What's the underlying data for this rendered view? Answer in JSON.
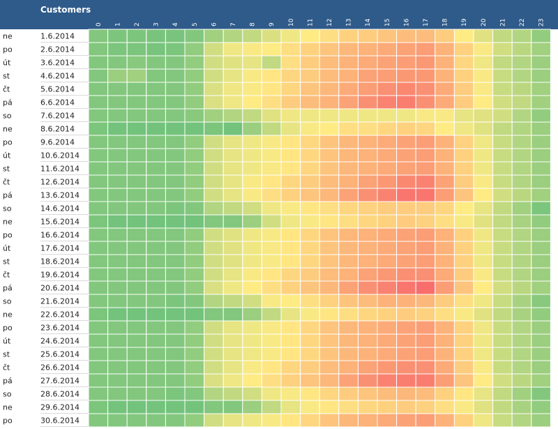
{
  "chart_data": {
    "type": "heatmap",
    "title": "Customers",
    "colors": {
      "header": "#2f5b8a",
      "low": "#63be7b",
      "mid": "#ffeb84",
      "high": "#f8696b"
    },
    "value_range": [
      0,
      100
    ],
    "columns": [
      "0",
      "1",
      "2",
      "3",
      "4",
      "5",
      "6",
      "7",
      "8",
      "9",
      "10",
      "11",
      "12",
      "13",
      "14",
      "15",
      "16",
      "17",
      "18",
      "19",
      "20",
      "21",
      "22",
      "23"
    ],
    "rows": [
      {
        "day": "ne",
        "date": "1.6.2014"
      },
      {
        "day": "po",
        "date": "2.6.2014"
      },
      {
        "day": "út",
        "date": "3.6.2014"
      },
      {
        "day": "st",
        "date": "4.6.2014"
      },
      {
        "day": "čt",
        "date": "5.6.2014"
      },
      {
        "day": "pá",
        "date": "6.6.2014"
      },
      {
        "day": "so",
        "date": "7.6.2014"
      },
      {
        "day": "ne",
        "date": "8.6.2014"
      },
      {
        "day": "po",
        "date": "9.6.2014"
      },
      {
        "day": "út",
        "date": "10.6.2014"
      },
      {
        "day": "st",
        "date": "11.6.2014"
      },
      {
        "day": "čt",
        "date": "12.6.2014"
      },
      {
        "day": "pá",
        "date": "13.6.2014"
      },
      {
        "day": "so",
        "date": "14.6.2014"
      },
      {
        "day": "ne",
        "date": "15.6.2014"
      },
      {
        "day": "po",
        "date": "16.6.2014"
      },
      {
        "day": "út",
        "date": "17.6.2014"
      },
      {
        "day": "st",
        "date": "18.6.2014"
      },
      {
        "day": "čt",
        "date": "19.6.2014"
      },
      {
        "day": "pá",
        "date": "20.6.2014"
      },
      {
        "day": "so",
        "date": "21.6.2014"
      },
      {
        "day": "ne",
        "date": "22.6.2014"
      },
      {
        "day": "po",
        "date": "23.6.2014"
      },
      {
        "day": "út",
        "date": "24.6.2014"
      },
      {
        "day": "st",
        "date": "25.6.2014"
      },
      {
        "day": "čt",
        "date": "26.6.2014"
      },
      {
        "day": "pá",
        "date": "27.6.2014"
      },
      {
        "day": "so",
        "date": "28.6.2014"
      },
      {
        "day": "ne",
        "date": "29.6.2014"
      },
      {
        "day": "po",
        "date": "30.6.2014"
      }
    ],
    "values": [
      [
        10,
        8,
        8,
        7,
        7,
        10,
        20,
        25,
        30,
        38,
        45,
        50,
        55,
        60,
        62,
        65,
        68,
        68,
        62,
        50,
        40,
        30,
        25,
        15
      ],
      [
        10,
        8,
        8,
        7,
        8,
        15,
        35,
        45,
        48,
        50,
        55,
        60,
        65,
        70,
        72,
        75,
        78,
        80,
        72,
        60,
        48,
        35,
        28,
        20
      ],
      [
        10,
        10,
        12,
        10,
        10,
        15,
        35,
        40,
        42,
        30,
        55,
        62,
        68,
        72,
        75,
        78,
        80,
        82,
        72,
        58,
        45,
        30,
        25,
        18
      ],
      [
        10,
        18,
        20,
        10,
        10,
        15,
        35,
        42,
        48,
        52,
        58,
        62,
        68,
        72,
        78,
        80,
        82,
        82,
        72,
        60,
        48,
        32,
        25,
        18
      ],
      [
        10,
        10,
        10,
        10,
        10,
        15,
        38,
        45,
        48,
        52,
        58,
        65,
        70,
        75,
        80,
        85,
        88,
        85,
        75,
        62,
        48,
        32,
        28,
        20
      ],
      [
        10,
        10,
        10,
        10,
        10,
        15,
        38,
        45,
        50,
        55,
        62,
        68,
        72,
        78,
        85,
        90,
        92,
        85,
        75,
        62,
        50,
        35,
        30,
        20
      ],
      [
        10,
        10,
        10,
        10,
        10,
        12,
        20,
        25,
        30,
        40,
        45,
        45,
        45,
        45,
        45,
        45,
        45,
        48,
        48,
        42,
        40,
        35,
        25,
        15
      ],
      [
        8,
        5,
        5,
        5,
        5,
        5,
        8,
        5,
        18,
        30,
        42,
        48,
        50,
        55,
        55,
        58,
        60,
        58,
        50,
        45,
        40,
        30,
        25,
        18
      ],
      [
        10,
        10,
        10,
        10,
        10,
        15,
        35,
        42,
        45,
        48,
        52,
        58,
        65,
        70,
        72,
        75,
        78,
        80,
        72,
        60,
        45,
        32,
        25,
        18
      ],
      [
        10,
        10,
        10,
        10,
        10,
        15,
        35,
        42,
        45,
        48,
        52,
        58,
        65,
        70,
        72,
        75,
        78,
        80,
        72,
        60,
        45,
        32,
        25,
        18
      ],
      [
        10,
        10,
        10,
        10,
        10,
        15,
        35,
        42,
        45,
        48,
        52,
        58,
        65,
        70,
        72,
        75,
        78,
        80,
        72,
        60,
        45,
        32,
        25,
        18
      ],
      [
        10,
        10,
        10,
        10,
        10,
        15,
        35,
        42,
        48,
        52,
        58,
        62,
        68,
        72,
        78,
        82,
        88,
        90,
        78,
        62,
        48,
        32,
        25,
        18
      ],
      [
        10,
        10,
        10,
        10,
        10,
        15,
        35,
        42,
        48,
        55,
        60,
        65,
        70,
        78,
        85,
        90,
        95,
        95,
        80,
        65,
        50,
        35,
        28,
        20
      ],
      [
        10,
        10,
        10,
        10,
        8,
        10,
        25,
        30,
        35,
        45,
        48,
        52,
        55,
        58,
        60,
        62,
        62,
        62,
        58,
        50,
        42,
        30,
        20,
        8
      ],
      [
        8,
        5,
        5,
        5,
        5,
        5,
        10,
        10,
        18,
        35,
        45,
        48,
        52,
        55,
        58,
        60,
        62,
        60,
        55,
        48,
        40,
        30,
        22,
        15
      ],
      [
        10,
        10,
        10,
        10,
        10,
        15,
        35,
        40,
        45,
        48,
        52,
        58,
        65,
        70,
        72,
        75,
        78,
        80,
        72,
        60,
        45,
        32,
        25,
        18
      ],
      [
        10,
        10,
        10,
        10,
        10,
        15,
        35,
        40,
        45,
        48,
        52,
        58,
        65,
        70,
        72,
        75,
        78,
        80,
        72,
        60,
        45,
        32,
        25,
        18
      ],
      [
        10,
        10,
        10,
        10,
        10,
        15,
        35,
        40,
        45,
        48,
        52,
        58,
        65,
        70,
        72,
        75,
        78,
        80,
        72,
        60,
        45,
        32,
        25,
        18
      ],
      [
        10,
        10,
        10,
        10,
        10,
        15,
        35,
        42,
        48,
        52,
        58,
        62,
        68,
        72,
        78,
        82,
        85,
        85,
        75,
        62,
        48,
        32,
        25,
        18
      ],
      [
        10,
        10,
        10,
        10,
        10,
        15,
        38,
        45,
        50,
        55,
        60,
        65,
        70,
        78,
        85,
        90,
        95,
        98,
        80,
        65,
        50,
        35,
        28,
        20
      ],
      [
        10,
        10,
        10,
        10,
        8,
        10,
        25,
        30,
        35,
        48,
        50,
        55,
        60,
        65,
        68,
        72,
        72,
        70,
        62,
        55,
        45,
        32,
        22,
        12
      ],
      [
        8,
        5,
        5,
        5,
        5,
        5,
        10,
        10,
        18,
        30,
        42,
        48,
        52,
        55,
        58,
        60,
        62,
        60,
        55,
        48,
        40,
        30,
        22,
        15
      ],
      [
        10,
        10,
        10,
        10,
        10,
        15,
        35,
        42,
        45,
        48,
        52,
        58,
        65,
        70,
        72,
        75,
        78,
        80,
        72,
        60,
        45,
        32,
        25,
        18
      ],
      [
        10,
        10,
        10,
        10,
        10,
        15,
        35,
        42,
        45,
        48,
        52,
        58,
        65,
        70,
        72,
        75,
        78,
        80,
        72,
        60,
        45,
        32,
        25,
        18
      ],
      [
        10,
        10,
        10,
        10,
        10,
        15,
        35,
        42,
        45,
        48,
        52,
        58,
        65,
        70,
        72,
        75,
        78,
        80,
        72,
        60,
        45,
        32,
        25,
        18
      ],
      [
        10,
        10,
        10,
        10,
        10,
        15,
        35,
        42,
        48,
        52,
        58,
        62,
        68,
        72,
        78,
        82,
        85,
        85,
        75,
        62,
        48,
        32,
        25,
        18
      ],
      [
        10,
        10,
        10,
        10,
        10,
        15,
        38,
        45,
        50,
        55,
        60,
        65,
        70,
        78,
        85,
        90,
        92,
        92,
        80,
        65,
        50,
        35,
        28,
        20
      ],
      [
        10,
        10,
        10,
        10,
        8,
        10,
        25,
        30,
        35,
        45,
        48,
        52,
        58,
        62,
        65,
        68,
        70,
        68,
        60,
        52,
        42,
        30,
        20,
        10
      ],
      [
        8,
        5,
        5,
        5,
        5,
        5,
        10,
        10,
        18,
        30,
        42,
        48,
        52,
        55,
        58,
        60,
        62,
        60,
        55,
        48,
        40,
        30,
        22,
        15
      ],
      [
        10,
        10,
        10,
        10,
        10,
        15,
        35,
        42,
        45,
        48,
        52,
        58,
        65,
        70,
        72,
        75,
        78,
        80,
        72,
        60,
        45,
        32,
        25,
        18
      ]
    ]
  }
}
